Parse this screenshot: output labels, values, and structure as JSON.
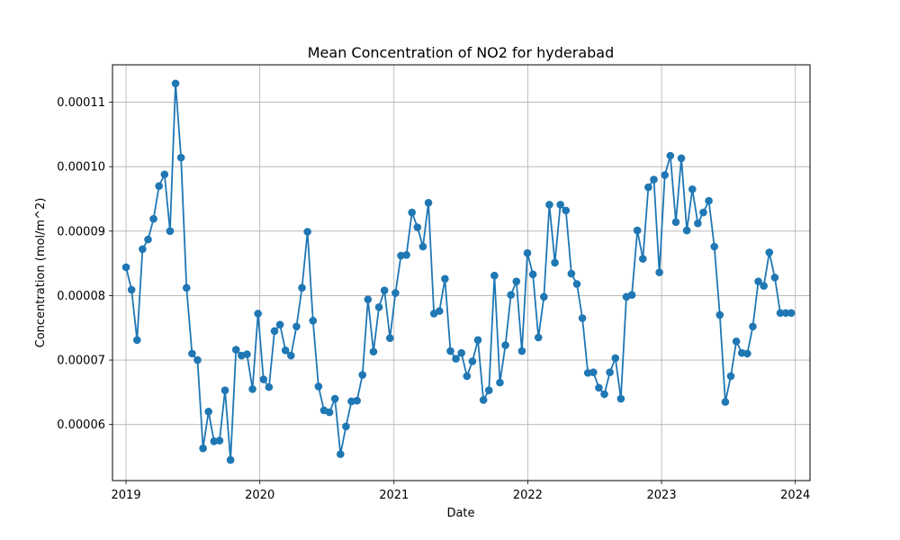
{
  "chart_data": {
    "type": "line",
    "title": "Mean Concentration of NO2 for hyderabad",
    "xlabel": "Date",
    "ylabel": "Concentration (mol/m^2)",
    "xlim": [
      "2018-11-25",
      "2024-02-10"
    ],
    "ylim": [
      5.13e-05,
      0.0001158
    ],
    "xticks": [
      {
        "date": "2019-01-01",
        "label": "2019"
      },
      {
        "date": "2020-01-01",
        "label": "2020"
      },
      {
        "date": "2021-01-01",
        "label": "2021"
      },
      {
        "date": "2022-01-01",
        "label": "2022"
      },
      {
        "date": "2023-01-01",
        "label": "2023"
      },
      {
        "date": "2024-01-01",
        "label": "2024"
      }
    ],
    "yticks": [
      {
        "value": 6e-05,
        "label": "0.00006"
      },
      {
        "value": 7e-05,
        "label": "0.00007"
      },
      {
        "value": 8e-05,
        "label": "0.00008"
      },
      {
        "value": 9e-05,
        "label": "0.00009"
      },
      {
        "value": 0.0001,
        "label": "0.00010"
      },
      {
        "value": 0.00011,
        "label": "0.00011"
      }
    ],
    "grid": true,
    "marker": "circle",
    "series": [
      {
        "color": "#1f77b4",
        "x": [
          "2019-01-01",
          "2019-01-16",
          "2019-01-31",
          "2019-02-15",
          "2019-03-02",
          "2019-03-17",
          "2019-04-01",
          "2019-04-16",
          "2019-05-01",
          "2019-05-16",
          "2019-05-31",
          "2019-06-15",
          "2019-06-30",
          "2019-07-15",
          "2019-07-30",
          "2019-08-14",
          "2019-08-29",
          "2019-09-13",
          "2019-09-28",
          "2019-10-13",
          "2019-10-28",
          "2019-11-12",
          "2019-11-27",
          "2019-12-12",
          "2019-12-27",
          "2020-01-11",
          "2020-01-26",
          "2020-02-10",
          "2020-02-25",
          "2020-03-11",
          "2020-03-26",
          "2020-04-10",
          "2020-04-25",
          "2020-05-10",
          "2020-05-25",
          "2020-06-09",
          "2020-06-24",
          "2020-07-09",
          "2020-07-24",
          "2020-08-08",
          "2020-08-23",
          "2020-09-07",
          "2020-09-22",
          "2020-10-07",
          "2020-10-22",
          "2020-11-06",
          "2020-11-21",
          "2020-12-06",
          "2020-12-21",
          "2021-01-05",
          "2021-01-20",
          "2021-02-04",
          "2021-02-19",
          "2021-03-06",
          "2021-03-21",
          "2021-04-05",
          "2021-04-20",
          "2021-05-05",
          "2021-05-20",
          "2021-06-04",
          "2021-06-19",
          "2021-07-04",
          "2021-07-19",
          "2021-08-03",
          "2021-08-18",
          "2021-09-02",
          "2021-09-17",
          "2021-10-02",
          "2021-10-17",
          "2021-11-01",
          "2021-11-16",
          "2021-12-01",
          "2021-12-16",
          "2021-12-31",
          "2022-01-15",
          "2022-01-30",
          "2022-02-14",
          "2022-03-01",
          "2022-03-16",
          "2022-03-31",
          "2022-04-15",
          "2022-04-30",
          "2022-05-15",
          "2022-05-30",
          "2022-06-14",
          "2022-06-29",
          "2022-07-14",
          "2022-07-29",
          "2022-08-13",
          "2022-08-28",
          "2022-09-12",
          "2022-09-27",
          "2022-10-12",
          "2022-10-27",
          "2022-11-11",
          "2022-11-26",
          "2022-12-11",
          "2022-12-26",
          "2023-01-10",
          "2023-01-25",
          "2023-02-09",
          "2023-02-24",
          "2023-03-11",
          "2023-03-26",
          "2023-04-10",
          "2023-04-25",
          "2023-05-10",
          "2023-05-25",
          "2023-06-09",
          "2023-06-24",
          "2023-07-09",
          "2023-07-24",
          "2023-08-08",
          "2023-08-23",
          "2023-09-07",
          "2023-09-22",
          "2023-10-07",
          "2023-10-22",
          "2023-11-06",
          "2023-11-21",
          "2023-12-06",
          "2023-12-21"
        ],
        "y": [
          8.44e-05,
          8.09e-05,
          7.31e-05,
          8.72e-05,
          8.87e-05,
          9.19e-05,
          9.7e-05,
          9.88e-05,
          9e-05,
          0.0001129,
          0.0001014,
          8.12e-05,
          7.1e-05,
          7e-05,
          5.63e-05,
          6.2e-05,
          5.74e-05,
          5.75e-05,
          6.53e-05,
          5.45e-05,
          7.16e-05,
          7.07e-05,
          7.09e-05,
          6.55e-05,
          7.72e-05,
          6.7e-05,
          6.58e-05,
          7.45e-05,
          7.55e-05,
          7.15e-05,
          7.07e-05,
          7.52e-05,
          8.12e-05,
          8.99e-05,
          7.61e-05,
          6.59e-05,
          6.22e-05,
          6.19e-05,
          6.4e-05,
          5.54e-05,
          5.97e-05,
          6.36e-05,
          6.37e-05,
          6.77e-05,
          7.94e-05,
          7.13e-05,
          7.82e-05,
          8.08e-05,
          7.34e-05,
          8.04e-05,
          8.62e-05,
          8.63e-05,
          9.29e-05,
          9.06e-05,
          8.76e-05,
          9.44e-05,
          7.72e-05,
          7.76e-05,
          8.26e-05,
          7.14e-05,
          7.02e-05,
          7.11e-05,
          6.75e-05,
          6.98e-05,
          7.31e-05,
          6.38e-05,
          6.53e-05,
          8.31e-05,
          6.65e-05,
          7.23e-05,
          8.01e-05,
          8.22e-05,
          7.14e-05,
          8.66e-05,
          8.33e-05,
          7.35e-05,
          7.98e-05,
          9.41e-05,
          8.51e-05,
          9.41e-05,
          9.32e-05,
          8.34e-05,
          8.18e-05,
          7.65e-05,
          6.8e-05,
          6.81e-05,
          6.57e-05,
          6.47e-05,
          6.81e-05,
          7.03e-05,
          6.4e-05,
          7.98e-05,
          8.01e-05,
          9.01e-05,
          8.57e-05,
          9.68e-05,
          9.8e-05,
          8.36e-05,
          9.87e-05,
          0.0001017,
          9.14e-05,
          0.0001013,
          9.01e-05,
          9.65e-05,
          9.12e-05,
          9.29e-05,
          9.47e-05,
          8.76e-05,
          7.7e-05,
          6.35e-05,
          6.75e-05,
          7.29e-05,
          7.11e-05,
          7.1e-05,
          7.52e-05,
          8.22e-05,
          8.15e-05,
          8.67e-05,
          8.28e-05,
          7.73e-05,
          7.73e-05,
          7.73e-05
        ]
      }
    ]
  }
}
